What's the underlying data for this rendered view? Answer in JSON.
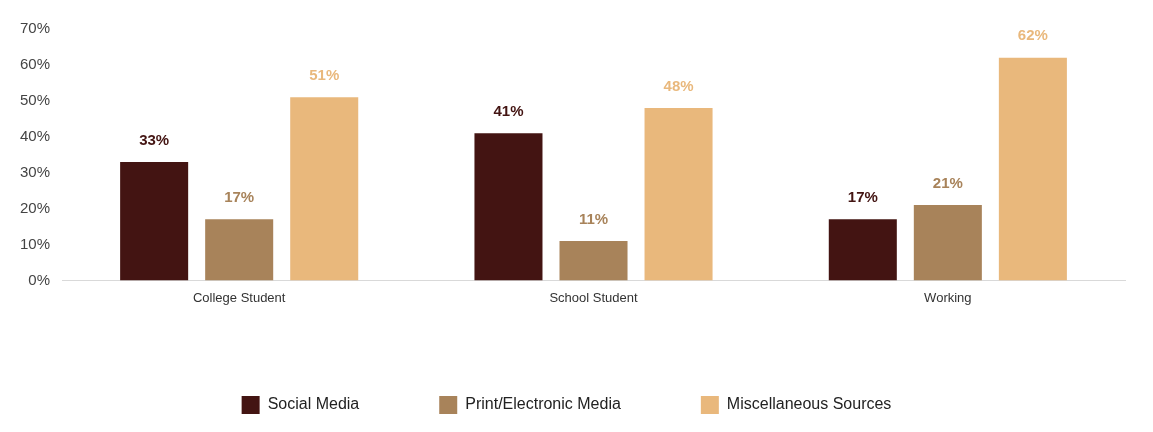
{
  "chart_data": {
    "type": "bar",
    "categories": [
      "College Student",
      "School Student",
      "Working"
    ],
    "series": [
      {
        "name": "Social Media",
        "color": "#431412",
        "values": [
          33,
          41,
          17
        ],
        "value_labels": [
          "33%",
          "41%",
          "17%"
        ]
      },
      {
        "name": "Print/Electronic Media",
        "color": "#a8835a",
        "values": [
          17,
          11,
          21
        ],
        "value_labels": [
          "17%",
          "11%",
          "21%"
        ]
      },
      {
        "name": "Miscellaneous Sources",
        "color": "#e9b87c",
        "values": [
          51,
          48,
          62
        ],
        "value_labels": [
          "51%",
          "48%",
          "62%"
        ]
      }
    ],
    "ylim": [
      0,
      70
    ],
    "yticks": [
      {
        "value": 0,
        "label": "0%"
      },
      {
        "value": 10,
        "label": "10%"
      },
      {
        "value": 20,
        "label": "20%"
      },
      {
        "value": 30,
        "label": "30%"
      },
      {
        "value": 40,
        "label": "40%"
      },
      {
        "value": 50,
        "label": "50%"
      },
      {
        "value": 60,
        "label": "60%"
      },
      {
        "value": 70,
        "label": "70%"
      }
    ],
    "legend": "bottom",
    "grid": false
  }
}
